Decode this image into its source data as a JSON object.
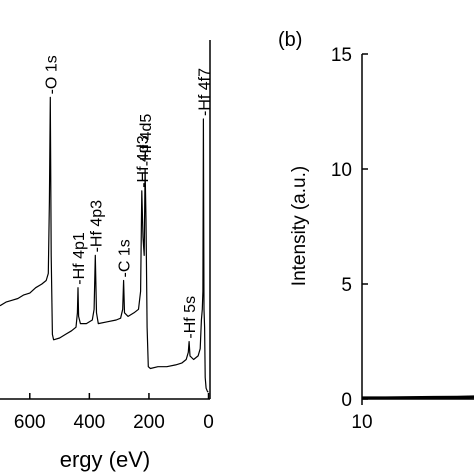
{
  "chart_data": [
    {
      "type": "line",
      "title": "",
      "xlabel": "Binding Energy (eV)",
      "xlabel_visible": "ergy (eV)",
      "ylabel": "",
      "x_reversed": true,
      "xlim": [
        700,
        -5
      ],
      "ylim": [
        0,
        100
      ],
      "x_ticks": [
        600,
        400,
        200,
        0
      ],
      "x_tick_labels": [
        "600",
        "400",
        "200",
        "0"
      ],
      "peaks": [
        {
          "label": "-O 1s",
          "x": 531,
          "height": 84
        },
        {
          "label": "-Hf 4p1",
          "x": 438,
          "height": 31
        },
        {
          "label": "-Hf 4p3",
          "x": 380,
          "height": 40
        },
        {
          "label": "-C 1s",
          "x": 285,
          "height": 33
        },
        {
          "label": "-Hf 4d3",
          "x": 224,
          "height": 58
        },
        {
          "label": "-Hf 4d5",
          "x": 213,
          "height": 64
        },
        {
          "label": "-Hf 5s",
          "x": 65,
          "height": 16
        },
        {
          "label": "-Hf 4f7",
          "x": 17,
          "height": 78
        }
      ],
      "spectrum": [
        [
          700,
          26
        ],
        [
          680,
          27
        ],
        [
          660,
          27.5
        ],
        [
          640,
          28
        ],
        [
          620,
          29
        ],
        [
          600,
          29.5
        ],
        [
          580,
          31
        ],
        [
          560,
          32
        ],
        [
          545,
          33
        ],
        [
          538,
          35
        ],
        [
          534,
          55
        ],
        [
          531,
          84
        ],
        [
          528,
          40
        ],
        [
          524,
          18
        ],
        [
          520,
          16.5
        ],
        [
          500,
          17
        ],
        [
          480,
          18
        ],
        [
          460,
          19
        ],
        [
          445,
          20
        ],
        [
          440,
          24
        ],
        [
          438,
          31
        ],
        [
          436,
          23
        ],
        [
          430,
          21
        ],
        [
          410,
          21
        ],
        [
          390,
          22
        ],
        [
          384,
          25
        ],
        [
          380,
          40
        ],
        [
          376,
          24
        ],
        [
          370,
          21
        ],
        [
          340,
          21.5
        ],
        [
          310,
          22
        ],
        [
          295,
          22.5
        ],
        [
          288,
          25
        ],
        [
          285,
          33
        ],
        [
          282,
          24
        ],
        [
          270,
          23
        ],
        [
          250,
          24
        ],
        [
          235,
          25
        ],
        [
          228,
          30
        ],
        [
          224,
          58
        ],
        [
          220,
          45
        ],
        [
          216,
          40
        ],
        [
          213,
          64
        ],
        [
          210,
          50
        ],
        [
          206,
          20
        ],
        [
          202,
          9
        ],
        [
          195,
          8.5
        ],
        [
          170,
          9
        ],
        [
          140,
          9
        ],
        [
          110,
          9.5
        ],
        [
          90,
          10
        ],
        [
          75,
          11
        ],
        [
          68,
          13
        ],
        [
          65,
          16
        ],
        [
          62,
          12
        ],
        [
          50,
          11
        ],
        [
          35,
          12
        ],
        [
          28,
          14
        ],
        [
          24,
          22
        ],
        [
          21,
          25
        ],
        [
          19,
          30
        ],
        [
          17,
          78
        ],
        [
          15,
          25
        ],
        [
          13,
          20
        ],
        [
          11,
          6
        ],
        [
          8,
          3
        ],
        [
          3,
          2
        ],
        [
          0,
          2
        ]
      ]
    },
    {
      "type": "line",
      "panel_label": "(b)",
      "title": "",
      "xlabel": "",
      "ylabel": "Intensity (a.u.)",
      "xlim": [
        10,
        14
      ],
      "ylim": [
        0,
        15
      ],
      "y_ticks": [
        0,
        5,
        10,
        15
      ],
      "y_tick_labels": [
        "0",
        "5",
        "10",
        "15"
      ],
      "x_ticks": [
        10
      ],
      "x_tick_labels": [
        "10"
      ],
      "series": [
        {
          "x": [
            10.0,
            10.4,
            10.8,
            11.2,
            11.6,
            12.0,
            12.2,
            12.4,
            12.5,
            12.6,
            12.7,
            12.8,
            12.9,
            13.0
          ],
          "values": [
            0.05,
            0.05,
            0.06,
            0.07,
            0.08,
            0.1,
            0.15,
            0.22,
            0.3,
            0.42,
            0.55,
            0.75,
            0.95,
            1.2
          ]
        }
      ]
    }
  ]
}
